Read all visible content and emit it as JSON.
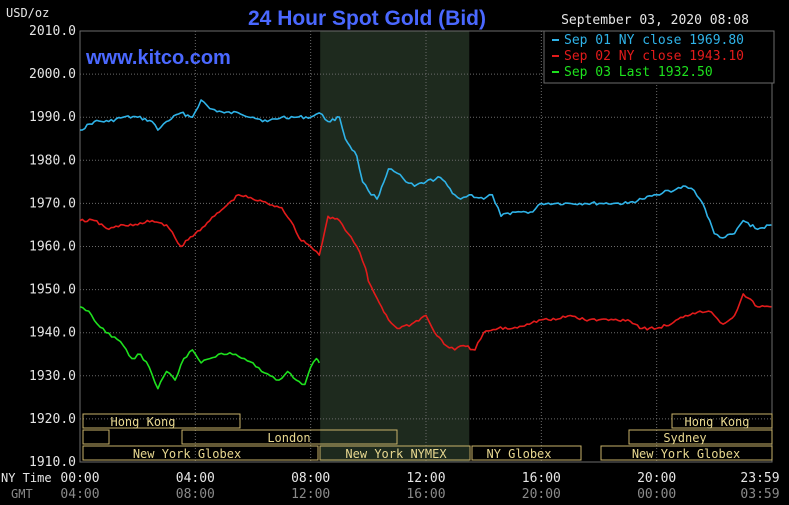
{
  "title": "24 Hour Spot Gold (Bid)",
  "watermark": "www.kitco.com",
  "timestamp": "September 03, 2020 08:08",
  "y_unit": "USD/oz",
  "colors": {
    "background": "#000000",
    "plot_bg": "#000000",
    "grid": "#6b6b6b",
    "title": "#4a68ff",
    "watermark": "#4a68ff",
    "nymex_shade": "#1e2a1e",
    "session_border": "#c8b26a",
    "session_text": "#e8d890",
    "axis_text": "#e6e6e6",
    "gmt_text": "#8a8a8a"
  },
  "legend": [
    {
      "label": "Sep 01 NY close 1969.80",
      "color": "#2fb3e8"
    },
    {
      "label": "Sep 02 NY close 1943.10",
      "color": "#e31b1b"
    },
    {
      "label": "Sep 03 Last 1932.50",
      "color": "#1ee11e"
    }
  ],
  "x_axis": {
    "row_labels": [
      "NY Time",
      "GMT"
    ],
    "ny_ticks": [
      "00:00",
      "04:00",
      "08:00",
      "12:00",
      "16:00",
      "20:00",
      "23:59"
    ],
    "gmt_ticks": [
      "04:00",
      "08:00",
      "12:00",
      "16:00",
      "20:00",
      "00:00",
      "03:59"
    ]
  },
  "sessions": {
    "row1": [
      "Hong Kong",
      "Hong Kong"
    ],
    "row2": [
      "London",
      "Sydney"
    ],
    "row3": [
      "New York Globex",
      "New York NYMEX",
      "NY Globex",
      "New York Globex"
    ]
  },
  "chart_data": {
    "type": "line",
    "x_unit": "hours since 00:00 NY time",
    "ylim": [
      1910,
      2010
    ],
    "xlim": [
      0,
      24
    ],
    "y_ticks": [
      "2010.0",
      "2000.0",
      "1990.0",
      "1980.0",
      "1970.0",
      "1960.0",
      "1950.0",
      "1940.0",
      "1930.0",
      "1920.0",
      "1910.0"
    ],
    "nymex_session": [
      8.33,
      13.5
    ],
    "grid": true,
    "series": [
      {
        "name": "Sep 01 NY close 1969.80",
        "color": "#2fb3e8",
        "x": [
          0,
          0.5,
          1,
          1.5,
          2,
          2.5,
          2.7,
          3,
          3.5,
          3.9,
          4.2,
          4.5,
          5,
          5.5,
          6,
          6.5,
          7,
          7.5,
          8,
          8.3,
          8.6,
          9,
          9.2,
          9.6,
          9.8,
          10,
          10.3,
          10.7,
          11,
          11.3,
          11.6,
          12,
          12.5,
          13,
          13.2,
          13.5,
          14,
          14.3,
          14.6,
          15,
          15.3,
          15.7,
          16,
          16.5,
          17,
          17.5,
          18,
          18.5,
          19,
          19.5,
          20,
          20.3,
          20.6,
          21,
          21.3,
          21.6,
          22,
          22.3,
          22.7,
          23,
          23.5,
          23.98
        ],
        "y": [
          1987,
          1989,
          1989,
          1990,
          1990,
          1989,
          1987,
          1989,
          1991,
          1990,
          1994,
          1992,
          1991,
          1991,
          1990,
          1989,
          1990,
          1990,
          1990,
          1991,
          1989,
          1990,
          1985,
          1981,
          1975,
          1973,
          1971,
          1978,
          1977,
          1975,
          1974,
          1975,
          1976,
          1972,
          1971,
          1972,
          1971,
          1972,
          1967,
          1968,
          1968,
          1968,
          1970,
          1970,
          1970,
          1970,
          1970,
          1970,
          1970,
          1971,
          1972,
          1973,
          1973,
          1974,
          1973,
          1970,
          1963,
          1962,
          1963,
          1966,
          1964,
          1965
        ]
      },
      {
        "name": "Sep 02 NY close 1943.10",
        "color": "#e31b1b",
        "x": [
          0,
          0.5,
          1,
          1.5,
          2,
          2.5,
          3,
          3.3,
          3.5,
          4,
          4.5,
          5,
          5.5,
          6,
          6.5,
          7,
          7.3,
          7.6,
          8,
          8.3,
          8.6,
          9,
          9.3,
          9.6,
          9.9,
          10,
          10.3,
          10.7,
          11,
          11.5,
          12,
          12.3,
          12.7,
          13,
          13.3,
          13.7,
          14,
          14.5,
          15,
          15.5,
          16,
          16.5,
          17,
          17.5,
          18,
          18.5,
          19,
          19.5,
          20,
          20.5,
          21,
          21.5,
          21.8,
          22,
          22.3,
          22.7,
          23,
          23.5,
          23.98
        ],
        "y": [
          1966,
          1966,
          1964,
          1965,
          1965,
          1966,
          1965,
          1962,
          1960,
          1963,
          1966,
          1969,
          1972,
          1971,
          1970,
          1969,
          1966,
          1962,
          1960,
          1958,
          1967,
          1966,
          1963,
          1960,
          1955,
          1952,
          1948,
          1943,
          1941,
          1942,
          1944,
          1940,
          1937,
          1936,
          1937,
          1936,
          1940,
          1941,
          1941,
          1942,
          1943,
          1943,
          1944,
          1943,
          1943,
          1943,
          1943,
          1941,
          1941,
          1942,
          1944,
          1945,
          1945,
          1944,
          1942,
          1944,
          1949,
          1946,
          1946
        ]
      },
      {
        "name": "Sep 03 Last 1932.50",
        "color": "#1ee11e",
        "x": [
          0,
          0.3,
          0.6,
          0.9,
          1.2,
          1.5,
          1.8,
          2.1,
          2.4,
          2.7,
          3,
          3.3,
          3.6,
          3.9,
          4.2,
          4.5,
          4.8,
          5.1,
          5.4,
          5.7,
          6,
          6.3,
          6.6,
          6.9,
          7.2,
          7.5,
          7.8,
          8.0,
          8.2,
          8.3
        ],
        "y": [
          1946,
          1945,
          1942,
          1940,
          1939,
          1937,
          1934,
          1935,
          1932,
          1927,
          1931,
          1929,
          1934,
          1936,
          1933,
          1934,
          1935,
          1935,
          1935,
          1934,
          1933,
          1931,
          1930,
          1929,
          1931,
          1929,
          1928,
          1932,
          1934,
          1933
        ]
      }
    ]
  }
}
